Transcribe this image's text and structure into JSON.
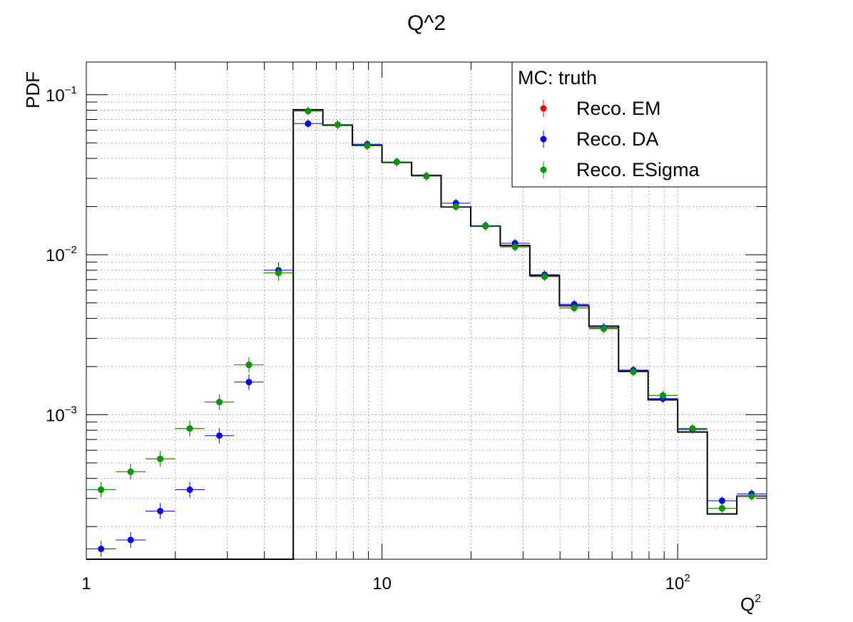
{
  "chart_data": {
    "type": "scatter",
    "title": "Q^2",
    "xlabel": "Q",
    "xlabel_sup": "2",
    "ylabel": "PDF",
    "x_scale": "log",
    "y_scale": "log",
    "xlim": [
      1,
      200
    ],
    "ylim": [
      0.000125,
      0.16
    ],
    "grid": true,
    "legend_position": "top-right",
    "x_ticks": [
      {
        "value": 1,
        "base": "1",
        "exp": ""
      },
      {
        "value": 10,
        "base": "10",
        "exp": ""
      },
      {
        "value": 100,
        "base": "10",
        "exp": "2"
      }
    ],
    "y_ticks": [
      {
        "value": 0.001,
        "base": "10",
        "exp": "−3"
      },
      {
        "value": 0.01,
        "base": "10",
        "exp": "−2"
      },
      {
        "value": 0.1,
        "base": "10",
        "exp": "−1"
      }
    ],
    "bin_edges": [
      1.0,
      1.259,
      1.585,
      1.995,
      2.512,
      3.162,
      3.981,
      5.012,
      6.31,
      7.943,
      10.0,
      12.59,
      15.85,
      19.95,
      25.12,
      31.62,
      39.81,
      50.12,
      63.1,
      79.43,
      100.0,
      125.9,
      158.5,
      199.5
    ],
    "legend_header": "MC: truth",
    "truth": {
      "name": "MC: truth",
      "color": "#000000",
      "values": [
        0,
        0,
        0,
        0,
        0,
        0,
        0,
        0.0805,
        0.0645,
        0.0483,
        0.0378,
        0.0313,
        0.0199,
        0.0151,
        0.0114,
        0.0074,
        0.0048,
        0.00358,
        0.00187,
        0.00124,
        0.00078,
        0.00024,
        0.00031
      ]
    },
    "series": [
      {
        "name": "Reco. EM",
        "color": "#ff0000",
        "values": [
          0.00034,
          0.00044,
          0.00053,
          0.00082,
          0.0012,
          0.00205,
          0.0077,
          0.079,
          0.065,
          0.048,
          0.038,
          0.031,
          0.02,
          0.0151,
          0.0112,
          0.0073,
          0.00465,
          0.00345,
          0.00185,
          0.00132,
          0.00082,
          0.00026,
          0.00031
        ]
      },
      {
        "name": "Reco. DA",
        "color": "#0000ff",
        "values": [
          0.000145,
          0.000165,
          0.00025,
          0.00034,
          0.00074,
          0.0016,
          0.008,
          0.066,
          0.065,
          0.049,
          0.038,
          0.031,
          0.021,
          0.0152,
          0.0118,
          0.0075,
          0.0049,
          0.0035,
          0.0019,
          0.00126,
          0.00081,
          0.00029,
          0.00032
        ]
      },
      {
        "name": "Reco. ESigma",
        "color": "#009900",
        "values": [
          0.00034,
          0.00044,
          0.00053,
          0.00082,
          0.0012,
          0.00205,
          0.0077,
          0.079,
          0.065,
          0.048,
          0.038,
          0.031,
          0.02,
          0.0151,
          0.0112,
          0.0073,
          0.00465,
          0.00345,
          0.00185,
          0.00132,
          0.00082,
          0.00026,
          0.00031
        ]
      }
    ]
  }
}
